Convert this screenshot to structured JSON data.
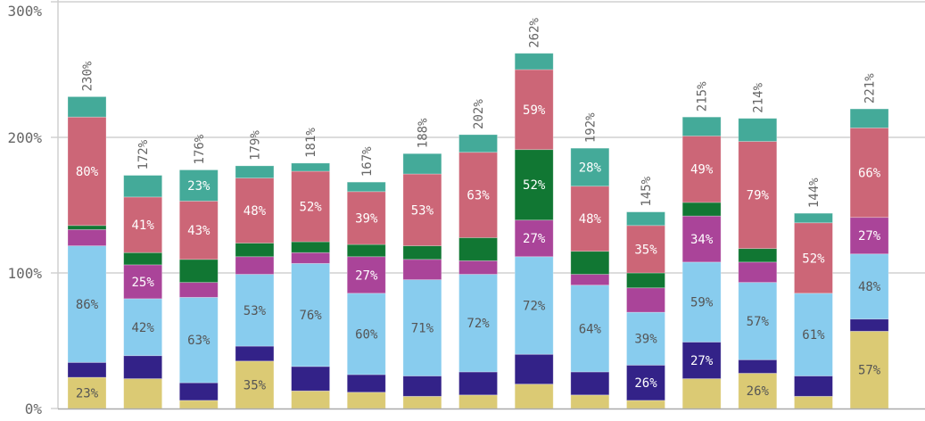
{
  "chart_data": {
    "type": "bar",
    "stacked": true,
    "title": "",
    "xlabel": "",
    "ylabel": "",
    "ylim": [
      0,
      300
    ],
    "y_ticks": [
      "0%",
      "100%",
      "200%",
      "300%"
    ],
    "grid": true,
    "legend": "none",
    "categories": [
      "",
      "",
      "",
      "",
      "",
      "",
      "",
      "",
      "",
      "",
      "",
      "",
      "",
      "",
      ""
    ],
    "totals": [
      "230%",
      "172%",
      "176%",
      "179%",
      "181%",
      "167%",
      "188%",
      "202%",
      "262%",
      "192%",
      "145%",
      "215%",
      "214%",
      "144%",
      "221%"
    ],
    "series": [
      {
        "color": "#dbca74",
        "label_color": "#555555",
        "values": [
          23,
          22,
          6,
          35,
          13,
          12,
          9,
          10,
          18,
          10,
          6,
          22,
          26,
          9,
          57
        ],
        "labels": [
          "23%",
          "",
          "",
          "35%",
          "",
          "",
          "",
          "",
          "",
          "",
          "",
          "",
          "26%",
          "",
          "57%"
        ]
      },
      {
        "color": "#332288",
        "label_color": "#ffffff",
        "values": [
          11,
          17,
          13,
          11,
          18,
          13,
          15,
          17,
          22,
          17,
          26,
          27,
          10,
          15,
          9
        ],
        "labels": [
          "",
          "",
          "",
          "",
          "",
          "",
          "",
          "",
          "",
          "",
          "26%",
          "27%",
          "",
          "",
          ""
        ]
      },
      {
        "color": "#88ccee",
        "label_color": "#555555",
        "values": [
          86,
          42,
          63,
          53,
          76,
          60,
          71,
          72,
          72,
          64,
          39,
          59,
          57,
          61,
          48
        ],
        "labels": [
          "86%",
          "42%",
          "63%",
          "53%",
          "76%",
          "60%",
          "71%",
          "72%",
          "72%",
          "64%",
          "39%",
          "59%",
          "57%",
          "61%",
          "48%"
        ]
      },
      {
        "color": "#aa4499",
        "label_color": "#ffffff",
        "values": [
          12,
          25,
          11,
          13,
          8,
          27,
          15,
          10,
          27,
          8,
          18,
          34,
          15,
          0,
          27
        ],
        "labels": [
          "",
          "25%",
          "",
          "",
          "",
          "27%",
          "",
          "",
          "27%",
          "",
          "",
          "34%",
          "",
          "",
          "27%"
        ]
      },
      {
        "color": "#117733",
        "label_color": "#ffffff",
        "values": [
          3,
          9,
          17,
          10,
          8,
          9,
          10,
          17,
          52,
          17,
          11,
          10,
          10,
          0,
          0
        ],
        "labels": [
          "",
          "",
          "",
          "",
          "",
          "",
          "",
          "",
          "52%",
          "",
          "",
          "",
          "",
          "",
          ""
        ]
      },
      {
        "color": "#cc6677",
        "label_color": "#ffffff",
        "values": [
          80,
          41,
          43,
          48,
          52,
          39,
          53,
          63,
          59,
          48,
          35,
          49,
          79,
          52,
          66
        ],
        "labels": [
          "80%",
          "41%",
          "43%",
          "48%",
          "52%",
          "39%",
          "53%",
          "63%",
          "59%",
          "48%",
          "35%",
          "49%",
          "79%",
          "52%",
          "66%"
        ]
      },
      {
        "color": "#44aa99",
        "label_color": "#ffffff",
        "values": [
          15,
          16,
          23,
          9,
          6,
          7,
          15,
          13,
          12,
          28,
          10,
          14,
          17,
          7,
          14
        ],
        "labels": [
          "",
          "",
          "23%",
          "",
          "",
          "",
          "",
          "",
          "",
          "28%",
          "",
          "",
          "",
          "",
          ""
        ]
      }
    ]
  }
}
